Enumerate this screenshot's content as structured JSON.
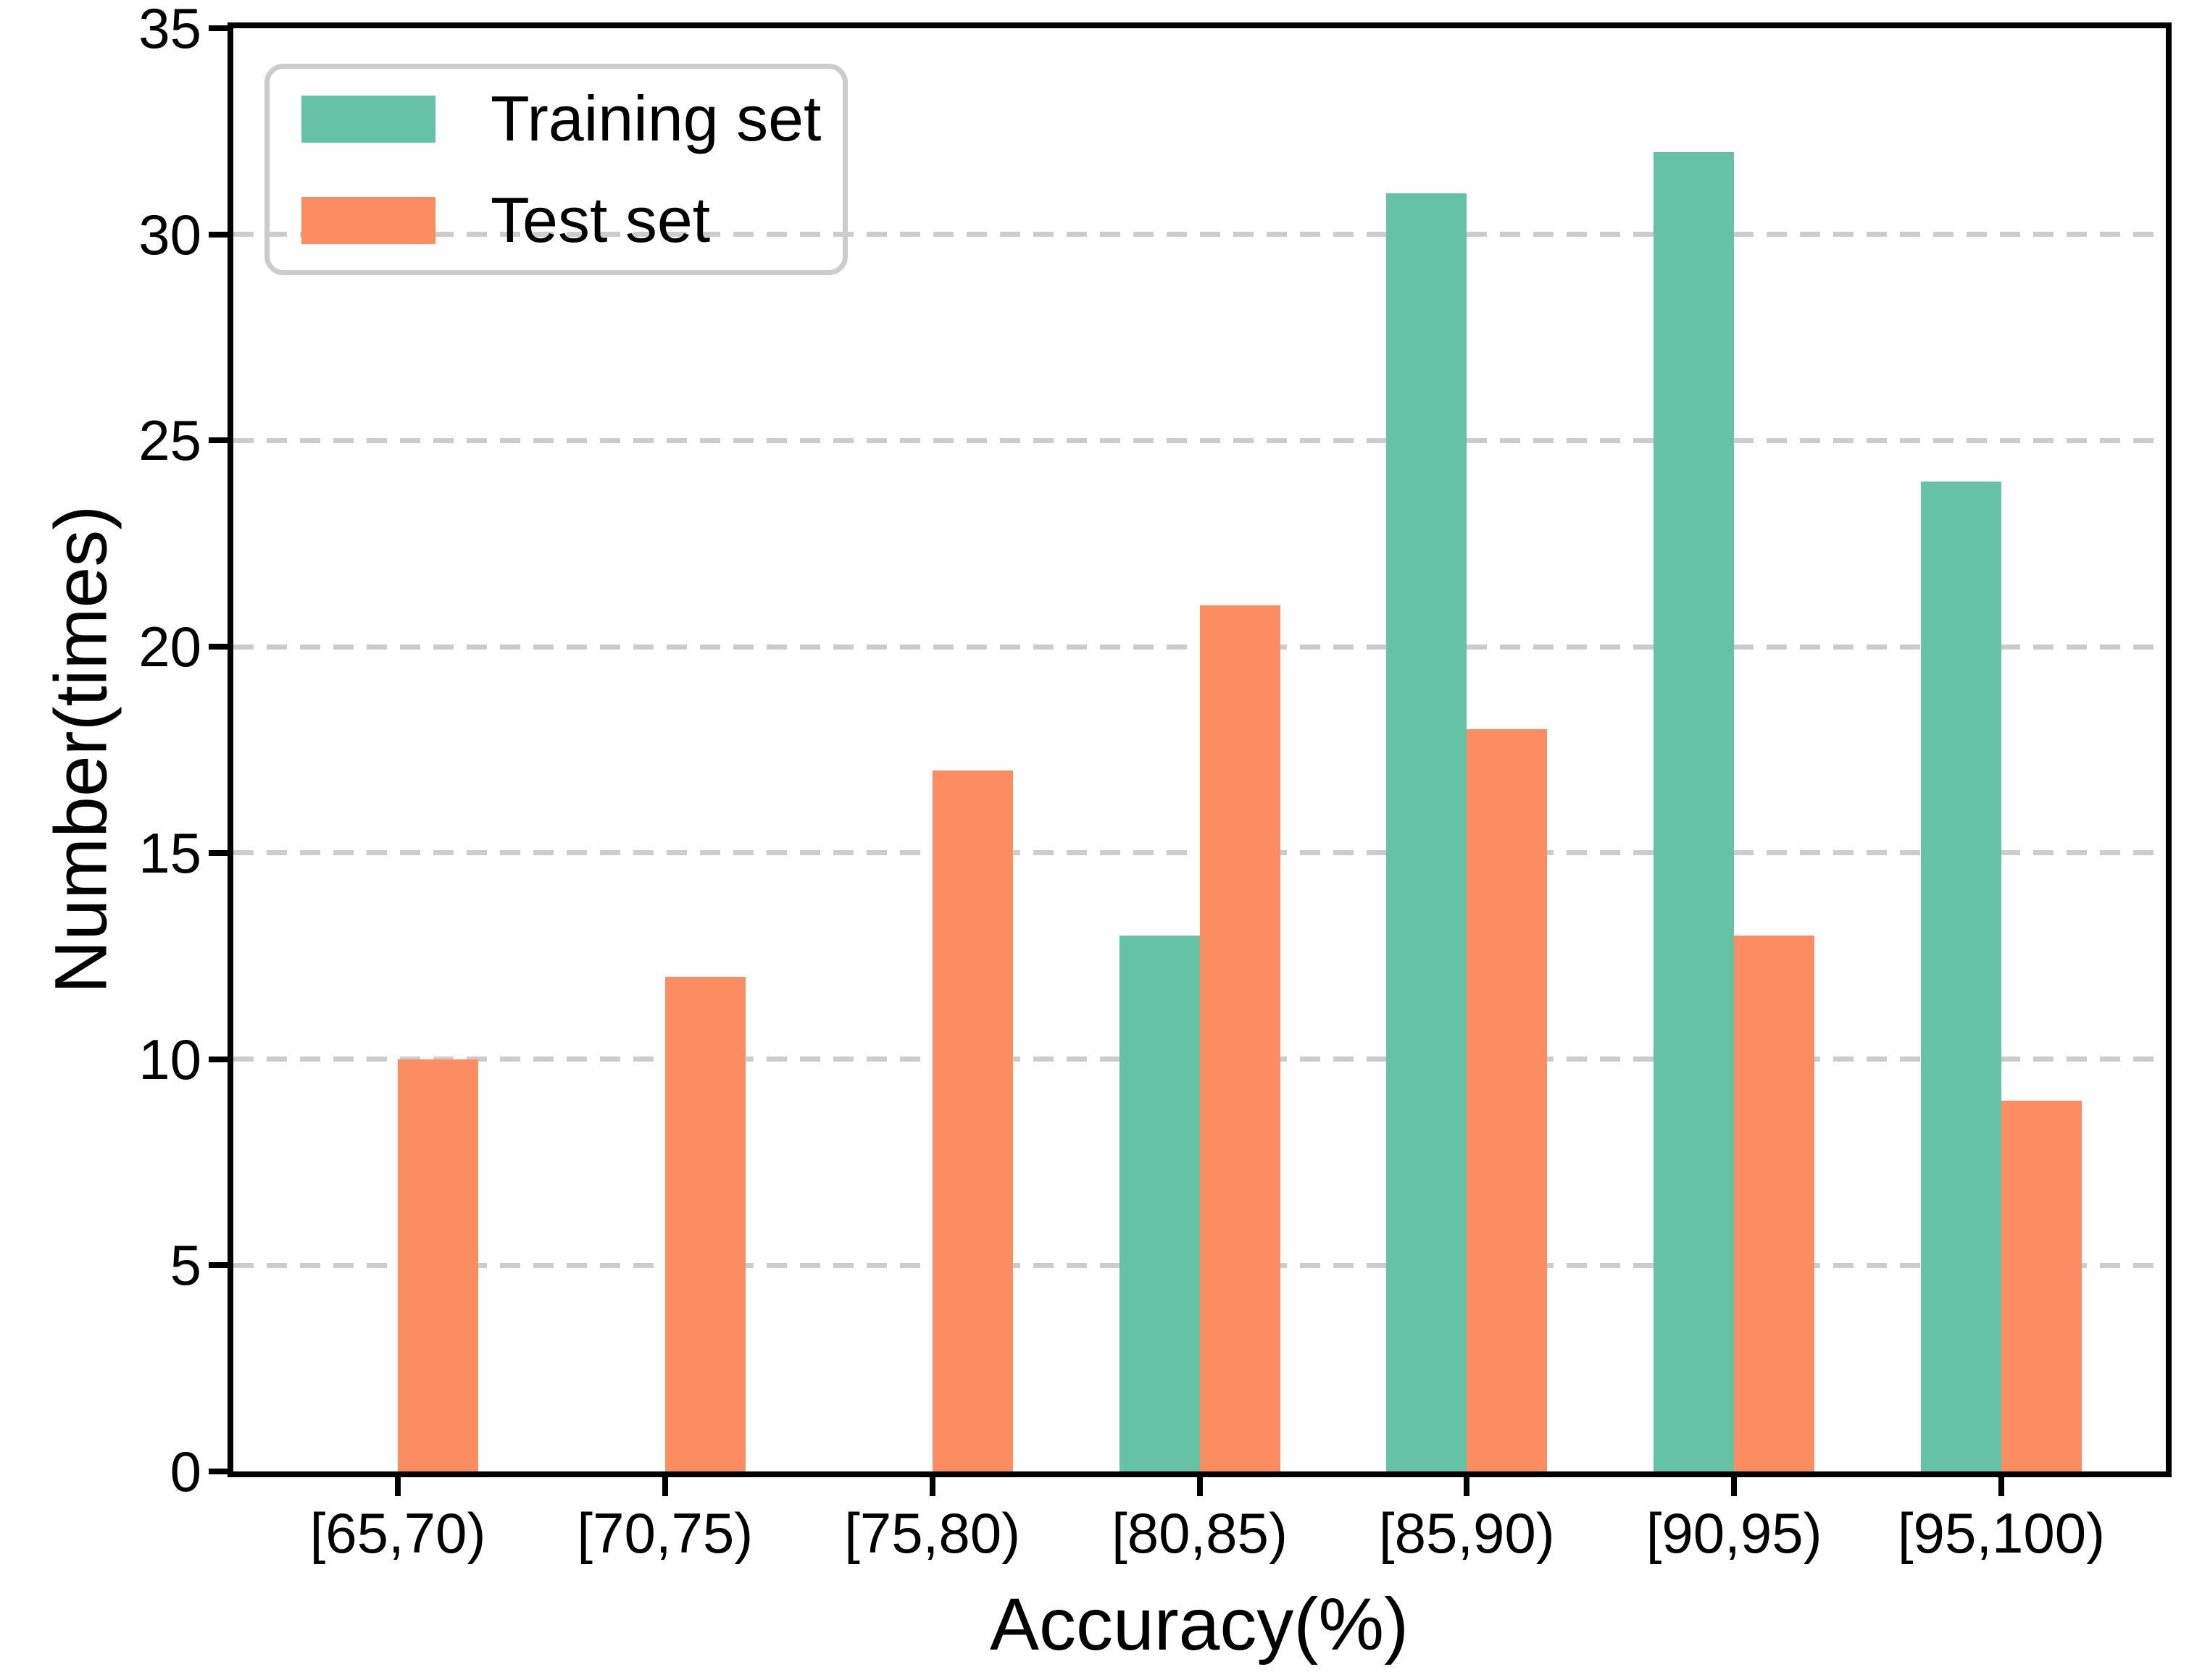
{
  "chart_data": {
    "type": "bar",
    "title": "",
    "xlabel": "Accuracy(%)",
    "ylabel": "Number(times)",
    "categories": [
      "[65,70)",
      "[70,75)",
      "[75,80)",
      "[80,85)",
      "[85,90)",
      "[90,95)",
      "[95,100)"
    ],
    "series": [
      {
        "name": "Training set",
        "color": "#66c2a5",
        "values": [
          0,
          0,
          0,
          13,
          31,
          32,
          24
        ]
      },
      {
        "name": "Test set",
        "color": "#fc8d62",
        "values": [
          10,
          12,
          17,
          21,
          18,
          13,
          9
        ]
      }
    ],
    "ylim": [
      0,
      35
    ],
    "yticks": [
      0,
      5,
      10,
      15,
      20,
      25,
      30,
      35
    ],
    "grid": "horizontal dashed gray lines at yticks",
    "legend_position": "upper left"
  },
  "colors": {
    "axis": "#000000",
    "grid": "#cccccc",
    "legend_border": "#cccccc",
    "background": "#ffffff"
  }
}
